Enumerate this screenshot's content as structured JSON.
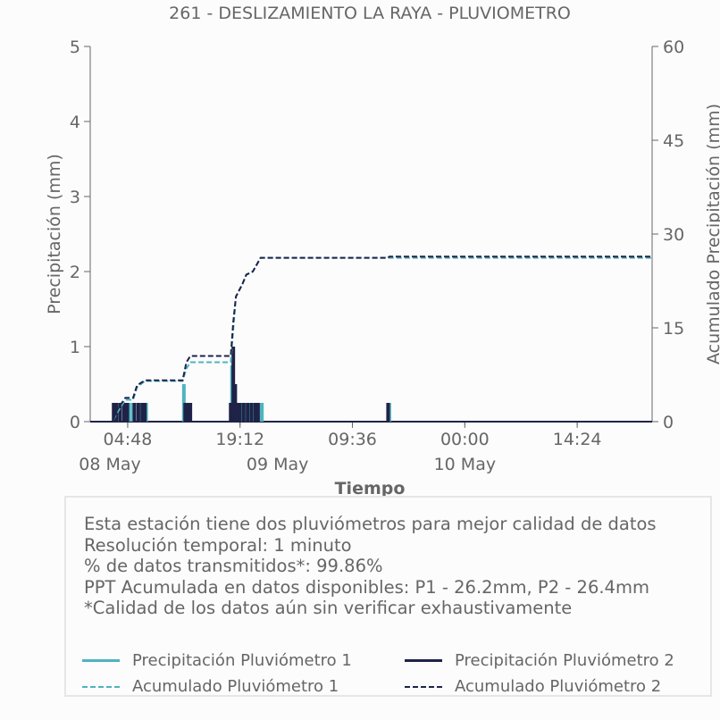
{
  "chart_data": {
    "type": "line",
    "title": "261 - DESLIZAMIENTO LA RAYA - PLUVIOMETRO",
    "xlabel": "Tiempo",
    "ylabel": "Precipitación (mm)",
    "y2label": "Acumulado Precipitación (mm)",
    "ylim": [
      0,
      5
    ],
    "y2lim": [
      0,
      60
    ],
    "yticks": [
      "0",
      "1",
      "2",
      "3",
      "4",
      "5"
    ],
    "y2ticks": [
      "0",
      "15",
      "30",
      "45",
      "60"
    ],
    "xlim": [
      "2024-05-08T00:00",
      "2024-05-11T00:00"
    ],
    "xticks": [
      {
        "t": "2024-05-08T04:48",
        "label": "04:48",
        "date": "08 May"
      },
      {
        "t": "2024-05-08T19:12",
        "label": "19:12",
        "date": "09 May"
      },
      {
        "t": "2024-05-09T09:36",
        "label": "09:36",
        "date": ""
      },
      {
        "t": "2024-05-10T00:00",
        "label": "00:00",
        "date": "10 May"
      },
      {
        "t": "2024-05-10T14:24",
        "label": "14:24",
        "date": ""
      }
    ],
    "grid": false,
    "series": [
      {
        "name": "Precipitación Pluviómetro 1",
        "color": "#4fb3bf",
        "style": "solid",
        "axis": "left",
        "points": [
          [
            "2024-05-08T03:10",
            0.25
          ],
          [
            "2024-05-08T03:40",
            0.25
          ],
          [
            "2024-05-08T04:30",
            0.25
          ],
          [
            "2024-05-08T05:00",
            0.25
          ],
          [
            "2024-05-08T05:30",
            0.25
          ],
          [
            "2024-05-08T06:20",
            0.25
          ],
          [
            "2024-05-08T06:45",
            0.25
          ],
          [
            "2024-05-08T07:10",
            0.25
          ],
          [
            "2024-05-08T12:00",
            0.5
          ],
          [
            "2024-05-08T12:20",
            0.25
          ],
          [
            "2024-05-08T12:40",
            0.25
          ],
          [
            "2024-05-08T18:10",
            0.75
          ],
          [
            "2024-05-08T18:30",
            0.25
          ],
          [
            "2024-05-08T19:00",
            0.25
          ],
          [
            "2024-05-08T19:30",
            0.25
          ],
          [
            "2024-05-08T20:00",
            0.25
          ],
          [
            "2024-05-08T20:30",
            0.25
          ],
          [
            "2024-05-08T21:00",
            0.25
          ],
          [
            "2024-05-08T21:40",
            0.25
          ],
          [
            "2024-05-08T22:00",
            0.25
          ],
          [
            "2024-05-09T14:20",
            0.25
          ]
        ]
      },
      {
        "name": "Precipitación Pluviómetro 2",
        "color": "#1f2347",
        "style": "solid",
        "axis": "left",
        "points": [
          [
            "2024-05-08T03:00",
            0.25
          ],
          [
            "2024-05-08T03:20",
            0.25
          ],
          [
            "2024-05-08T03:50",
            0.25
          ],
          [
            "2024-05-08T04:20",
            0.25
          ],
          [
            "2024-05-08T04:45",
            0.25
          ],
          [
            "2024-05-08T05:40",
            0.25
          ],
          [
            "2024-05-08T06:10",
            0.25
          ],
          [
            "2024-05-08T06:40",
            0.25
          ],
          [
            "2024-05-08T07:00",
            0.25
          ],
          [
            "2024-05-08T12:10",
            0.25
          ],
          [
            "2024-05-08T12:30",
            0.25
          ],
          [
            "2024-05-08T12:50",
            0.25
          ],
          [
            "2024-05-08T18:00",
            0.25
          ],
          [
            "2024-05-08T18:20",
            1.0
          ],
          [
            "2024-05-08T18:35",
            0.5
          ],
          [
            "2024-05-08T18:50",
            0.25
          ],
          [
            "2024-05-08T19:10",
            0.25
          ],
          [
            "2024-05-08T19:40",
            0.25
          ],
          [
            "2024-05-08T20:10",
            0.25
          ],
          [
            "2024-05-08T20:40",
            0.25
          ],
          [
            "2024-05-08T21:10",
            0.25
          ],
          [
            "2024-05-08T21:30",
            0.25
          ],
          [
            "2024-05-09T14:10",
            0.25
          ]
        ]
      },
      {
        "name": "Acumulado Pluviómetro 1",
        "color": "#4fb3bf",
        "style": "dashed",
        "axis": "right",
        "points": [
          [
            "2024-05-08T00:00",
            0
          ],
          [
            "2024-05-08T02:50",
            0
          ],
          [
            "2024-05-08T03:30",
            1.5
          ],
          [
            "2024-05-08T04:30",
            3.5
          ],
          [
            "2024-05-08T05:30",
            3.5
          ],
          [
            "2024-05-08T06:00",
            5.5
          ],
          [
            "2024-05-08T07:00",
            6.5
          ],
          [
            "2024-05-08T11:50",
            6.5
          ],
          [
            "2024-05-08T12:20",
            8.5
          ],
          [
            "2024-05-08T12:50",
            9.5
          ],
          [
            "2024-05-08T18:00",
            9.5
          ],
          [
            "2024-05-08T18:20",
            15
          ],
          [
            "2024-05-08T18:40",
            20
          ],
          [
            "2024-05-08T19:30",
            22
          ],
          [
            "2024-05-08T20:00",
            23.5
          ],
          [
            "2024-05-08T20:50",
            24
          ],
          [
            "2024-05-08T21:50",
            26.2
          ],
          [
            "2024-05-11T00:00",
            26.2
          ]
        ]
      },
      {
        "name": "Acumulado Pluviómetro 2",
        "color": "#1f2347",
        "style": "dashed",
        "axis": "right",
        "points": [
          [
            "2024-05-08T00:00",
            0
          ],
          [
            "2024-05-08T02:50",
            0
          ],
          [
            "2024-05-08T03:30",
            2
          ],
          [
            "2024-05-08T04:30",
            3.8
          ],
          [
            "2024-05-08T05:30",
            3.8
          ],
          [
            "2024-05-08T06:00",
            5.8
          ],
          [
            "2024-05-08T07:00",
            6.6
          ],
          [
            "2024-05-08T11:50",
            6.6
          ],
          [
            "2024-05-08T12:20",
            9.5
          ],
          [
            "2024-05-08T12:50",
            10.5
          ],
          [
            "2024-05-08T18:00",
            10.5
          ],
          [
            "2024-05-08T18:20",
            16
          ],
          [
            "2024-05-08T18:40",
            20
          ],
          [
            "2024-05-08T19:30",
            22
          ],
          [
            "2024-05-08T20:00",
            23.5
          ],
          [
            "2024-05-08T20:50",
            24
          ],
          [
            "2024-05-08T21:50",
            26.2
          ],
          [
            "2024-05-09T14:10",
            26.2
          ],
          [
            "2024-05-09T14:20",
            26.4
          ],
          [
            "2024-05-11T00:00",
            26.4
          ]
        ]
      }
    ]
  },
  "info": {
    "line1": "Esta estación tiene dos pluviómetros para mejor calidad de datos",
    "line2": "Resolución temporal: 1 minuto",
    "line3": "% de datos transmitidos*: 99.86%",
    "line4": "PPT Acumulada en datos disponibles: P1 - 26.2mm, P2 - 26.4mm",
    "line5": "*Calidad de los datos aún sin verificar exhaustivamente"
  },
  "legend": {
    "p1": "Precipitación Pluviómetro 1",
    "p2": "Precipitación Pluviómetro 2",
    "a1": "Acumulado Pluviómetro 1",
    "a2": "Acumulado Pluviómetro 2"
  },
  "colors": {
    "p1": "#4fb3bf",
    "p2": "#1f2347",
    "axis": "#666666",
    "text": "#666666"
  }
}
